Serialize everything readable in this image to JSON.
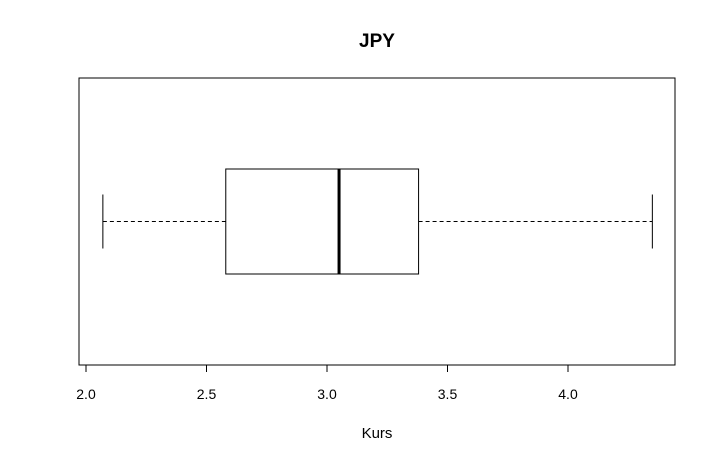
{
  "chart_data": {
    "type": "boxplot",
    "orientation": "horizontal",
    "title": "JPY",
    "xlabel": "Kurs",
    "ylabel": "",
    "xlim": [
      2.0,
      4.42
    ],
    "xticks": [
      2.0,
      2.5,
      3.0,
      3.5,
      4.0
    ],
    "xtick_labels": [
      "2.0",
      "2.5",
      "3.0",
      "3.5",
      "4.0"
    ],
    "grid": false,
    "box": {
      "whisker_low": 2.07,
      "q1": 2.58,
      "median": 3.05,
      "q3": 3.38,
      "whisker_high": 4.35
    },
    "colors": {
      "stroke": "#000000",
      "background": "#ffffff"
    }
  }
}
